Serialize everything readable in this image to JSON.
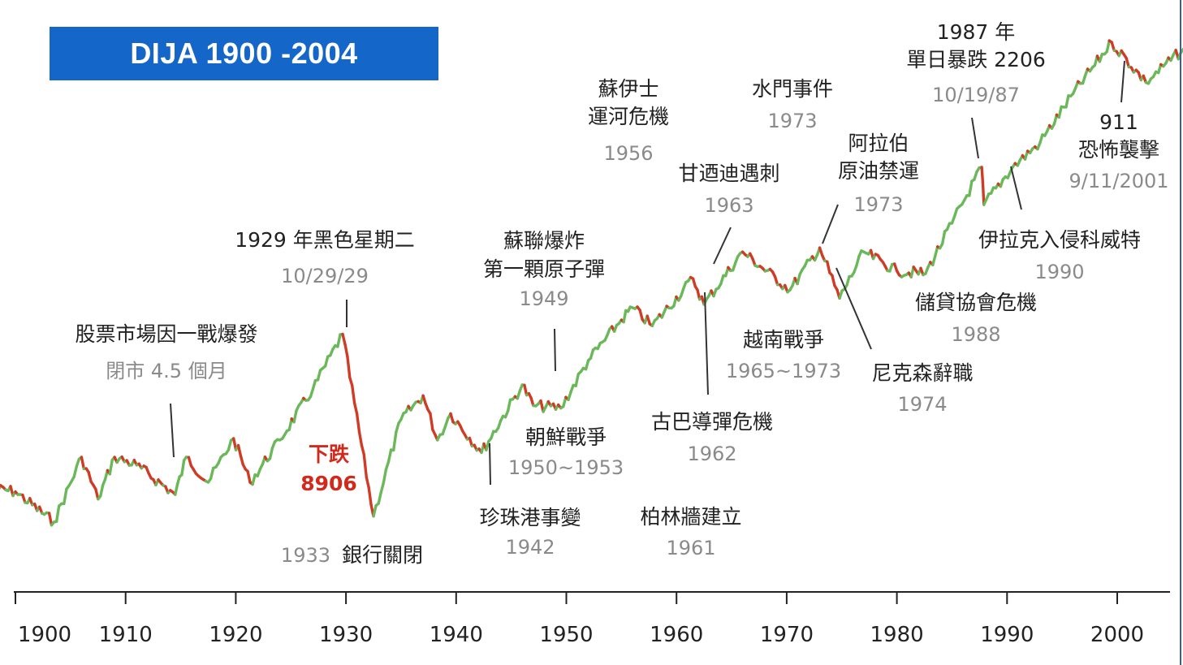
{
  "title": "DIJA 1900 -2004",
  "colors": {
    "up": "#6ab85a",
    "down": "#cf3b25",
    "title_bg": "#1466c8",
    "annotation_red": "#d12a1c"
  },
  "chart_data": {
    "type": "line",
    "title": "DIJA 1900 -2004",
    "xlabel": "",
    "ylabel": "",
    "xlim": [
      1898,
      2006
    ],
    "y_scale": "log",
    "grid": false,
    "legend": "none",
    "x_ticks": [
      1900,
      1910,
      1920,
      1930,
      1940,
      1950,
      1960,
      1970,
      1980,
      1990,
      2000
    ],
    "x_tick_labels": [
      "1900",
      "1910",
      "1920",
      "1930",
      "1940",
      "1950",
      "1960",
      "1970",
      "1980",
      "1990",
      "2000"
    ],
    "series": [
      {
        "x": [
          1898,
          1900,
          1903.5,
          1906,
          1907.5,
          1909,
          1911,
          1914.5,
          1915.5,
          1917.5,
          1919.8,
          1921.3,
          1924,
          1927,
          1929.7,
          1932.5,
          1935,
          1937,
          1938.3,
          1939.5,
          1942.3,
          1946,
          1947,
          1949.5,
          1952,
          1955,
          1956,
          1957.8,
          1961.5,
          1962.5,
          1966,
          1970.3,
          1973,
          1974.8,
          1977,
          1980,
          1982.6,
          1985,
          1987.7,
          1987.9,
          1990.5,
          1993,
          1996,
          1999.5,
          2002.6,
          2006
        ],
        "y": [
          62,
          60,
          42,
          90,
          55,
          90,
          82,
          58,
          90,
          67,
          112,
          67,
          110,
          200,
          381,
          45,
          140,
          185,
          110,
          150,
          95,
          210,
          165,
          160,
          280,
          450,
          520,
          420,
          730,
          540,
          1000,
          640,
          1050,
          580,
          1000,
          800,
          775,
          1400,
          2700,
          1740,
          2700,
          3600,
          6400,
          11700,
          7300,
          10800
        ]
      }
    ]
  },
  "events": [
    {
      "id": "wwi-closure",
      "title": [
        "股票市場因一戰爆發",
        "閉市 4.5 個月"
      ],
      "date": ""
    },
    {
      "id": "black-tuesday",
      "title": [
        "1929 年黑色星期二"
      ],
      "date": "10/29/29"
    },
    {
      "id": "drop",
      "title": [
        "下跌",
        "8906"
      ],
      "date": ""
    },
    {
      "id": "bank-closures",
      "title": [
        "銀行關閉"
      ],
      "date": "1933"
    },
    {
      "id": "pearl-harbor",
      "title": [
        "珍珠港事變"
      ],
      "date": "1942"
    },
    {
      "id": "soviet-atomic",
      "title": [
        "蘇聯爆炸",
        "第一顆原子彈"
      ],
      "date": "1949"
    },
    {
      "id": "korean-war",
      "title": [
        "朝鮮戰爭"
      ],
      "date": "1950~1953"
    },
    {
      "id": "suez-crisis",
      "title": [
        "蘇伊士",
        "運河危機"
      ],
      "date": "1956"
    },
    {
      "id": "berlin-wall",
      "title": [
        "柏林牆建立"
      ],
      "date": "1961"
    },
    {
      "id": "cuban-missile",
      "title": [
        "古巴導彈危機"
      ],
      "date": "1962"
    },
    {
      "id": "kennedy",
      "title": [
        "甘迺迪遇刺"
      ],
      "date": "1963"
    },
    {
      "id": "vietnam-war",
      "title": [
        "越南戰爭"
      ],
      "date": "1965~1973"
    },
    {
      "id": "watergate",
      "title": [
        "水門事件"
      ],
      "date": "1973"
    },
    {
      "id": "oil-embargo",
      "title": [
        "阿拉伯",
        "原油禁運"
      ],
      "date": "1973"
    },
    {
      "id": "nixon-resigns",
      "title": [
        "尼克森辭職"
      ],
      "date": "1974"
    },
    {
      "id": "savings-loan",
      "title": [
        "儲貸協會危機"
      ],
      "date": "1988"
    },
    {
      "id": "black-monday",
      "title": [
        "1987 年",
        "單日暴跌 2206"
      ],
      "date": "10/19/87"
    },
    {
      "id": "iraq-kuwait",
      "title": [
        "伊拉克入侵科威特"
      ],
      "date": "1990"
    },
    {
      "id": "sept-11",
      "title": [
        "911",
        "恐怖襲擊"
      ],
      "date": "9/11/2001"
    }
  ]
}
